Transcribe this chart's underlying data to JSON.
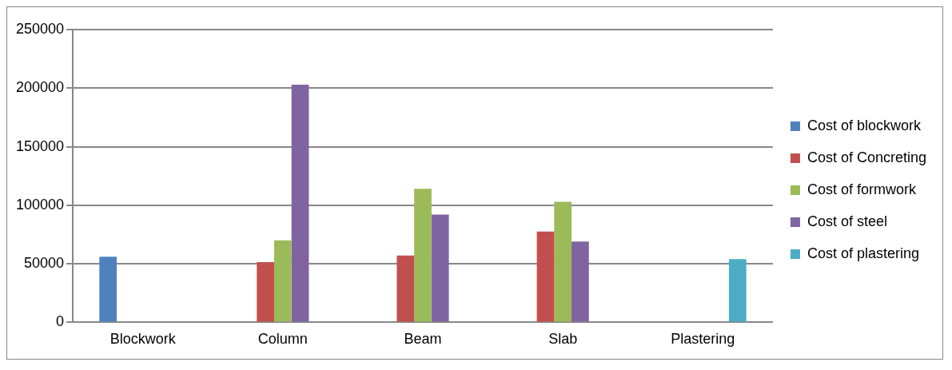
{
  "chart_data": {
    "type": "bar",
    "categories": [
      "Blockwork",
      "Column",
      "Beam",
      "Slab",
      "Plastering"
    ],
    "series": [
      {
        "name": "Cost of blockwork",
        "color": "#4f81bd",
        "values": [
          56000,
          null,
          null,
          null,
          null
        ]
      },
      {
        "name": "Cost of Concreting",
        "color": "#c0504d",
        "values": [
          null,
          51500,
          57000,
          77500,
          null
        ]
      },
      {
        "name": "Cost of formwork",
        "color": "#9bbb59",
        "values": [
          null,
          70000,
          114000,
          103000,
          null
        ]
      },
      {
        "name": "Cost of steel",
        "color": "#8064a2",
        "values": [
          null,
          203000,
          92000,
          69000,
          null
        ]
      },
      {
        "name": "Cost of plastering",
        "color": "#4bacc6",
        "values": [
          null,
          null,
          null,
          null,
          54000
        ]
      }
    ],
    "ylim": [
      0,
      250000
    ],
    "yticks": [
      0,
      50000,
      100000,
      150000,
      200000,
      250000
    ],
    "grid": "y",
    "legend": "right"
  }
}
